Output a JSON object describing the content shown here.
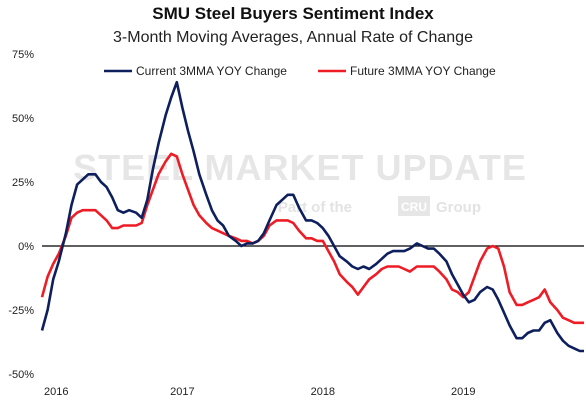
{
  "chart_data": {
    "type": "line",
    "title": "SMU Steel Buyers Sentiment Index",
    "subtitle": "3-Month Moving Averages, Annual Rate of Change",
    "ylim": [
      -50,
      75
    ],
    "yticks": [
      "-50%",
      "-25%",
      "0%",
      "25%",
      "50%",
      "75%"
    ],
    "ytick_values": [
      -50,
      -25,
      0,
      25,
      50,
      75
    ],
    "xticks": [
      "2016",
      "2017",
      "2018",
      "2019"
    ],
    "xtick_values": [
      2016,
      2017,
      2018,
      2019
    ],
    "xlim": [
      2016,
      2019.86
    ],
    "legend_position": "top",
    "watermark": {
      "line1": "STEEL MARKET UPDATE",
      "line2_pre": "Part of the",
      "line2_box": "CRU",
      "line2_post": "Group"
    },
    "series": [
      {
        "name": "Current 3MMA YOY Change",
        "color": "#0d1f5c",
        "x": [
          2016.0,
          2016.04,
          2016.08,
          2016.12,
          2016.17,
          2016.21,
          2016.25,
          2016.29,
          2016.33,
          2016.38,
          2016.42,
          2016.46,
          2016.5,
          2016.54,
          2016.58,
          2016.62,
          2016.67,
          2016.71,
          2016.75,
          2016.79,
          2016.83,
          2016.88,
          2016.92,
          2016.96,
          2017.0,
          2017.04,
          2017.08,
          2017.12,
          2017.17,
          2017.21,
          2017.25,
          2017.29,
          2017.33,
          2017.38,
          2017.42,
          2017.46,
          2017.5,
          2017.54,
          2017.58,
          2017.62,
          2017.67,
          2017.71,
          2017.75,
          2017.79,
          2017.83,
          2017.88,
          2017.92,
          2017.96,
          2018.0,
          2018.04,
          2018.08,
          2018.12,
          2018.17,
          2018.21,
          2018.25,
          2018.29,
          2018.33,
          2018.38,
          2018.42,
          2018.46,
          2018.5,
          2018.54,
          2018.58,
          2018.62,
          2018.67,
          2018.71,
          2018.75,
          2018.79,
          2018.83,
          2018.88,
          2018.92,
          2018.96,
          2019.0,
          2019.04,
          2019.08,
          2019.12,
          2019.17,
          2019.21,
          2019.25,
          2019.29,
          2019.33,
          2019.38,
          2019.42,
          2019.46,
          2019.5,
          2019.54,
          2019.58,
          2019.62,
          2019.67,
          2019.71,
          2019.75,
          2019.79,
          2019.83,
          2019.86
        ],
        "y": [
          -33,
          -25,
          -13,
          -6,
          5,
          16,
          24,
          26,
          28,
          28,
          25,
          23,
          19,
          14,
          13,
          14,
          13,
          11,
          18,
          30,
          40,
          51,
          58,
          64,
          54,
          45,
          37,
          28,
          20,
          14,
          10,
          8,
          4,
          2,
          0,
          1,
          1,
          2,
          5,
          10,
          16,
          18,
          20,
          20,
          15,
          10,
          10,
          9,
          7,
          4,
          0,
          -4,
          -6,
          -8,
          -9,
          -8,
          -9,
          -7,
          -5,
          -3,
          -2,
          -2,
          -2,
          -1,
          1,
          0,
          -1,
          -1,
          -3,
          -6,
          -11,
          -15,
          -19,
          -22,
          -21,
          -18,
          -16,
          -17,
          -21,
          -26,
          -31,
          -36,
          -36,
          -34,
          -33,
          -33,
          -30,
          -29,
          -34,
          -37,
          -39,
          -40,
          -41,
          -41
        ]
      },
      {
        "name": "Future 3MMA YOY Change",
        "color": "#ee1c25",
        "x": [
          2016.0,
          2016.04,
          2016.08,
          2016.12,
          2016.17,
          2016.21,
          2016.25,
          2016.29,
          2016.33,
          2016.38,
          2016.42,
          2016.46,
          2016.5,
          2016.54,
          2016.58,
          2016.62,
          2016.67,
          2016.71,
          2016.75,
          2016.79,
          2016.83,
          2016.88,
          2016.92,
          2016.96,
          2017.0,
          2017.04,
          2017.08,
          2017.12,
          2017.17,
          2017.21,
          2017.25,
          2017.29,
          2017.33,
          2017.38,
          2017.42,
          2017.46,
          2017.5,
          2017.54,
          2017.58,
          2017.62,
          2017.67,
          2017.71,
          2017.75,
          2017.79,
          2017.83,
          2017.88,
          2017.92,
          2017.96,
          2018.0,
          2018.04,
          2018.08,
          2018.12,
          2018.17,
          2018.21,
          2018.25,
          2018.29,
          2018.33,
          2018.38,
          2018.42,
          2018.46,
          2018.5,
          2018.54,
          2018.58,
          2018.62,
          2018.67,
          2018.71,
          2018.75,
          2018.79,
          2018.83,
          2018.88,
          2018.92,
          2018.96,
          2019.0,
          2019.04,
          2019.08,
          2019.12,
          2019.17,
          2019.21,
          2019.25,
          2019.29,
          2019.33,
          2019.38,
          2019.42,
          2019.46,
          2019.5,
          2019.54,
          2019.58,
          2019.62,
          2019.67,
          2019.71,
          2019.75,
          2019.79,
          2019.83,
          2019.86
        ],
        "y": [
          -20,
          -12,
          -7,
          -3,
          4,
          11,
          13,
          14,
          14,
          14,
          12,
          10,
          7,
          7,
          8,
          8,
          8,
          9,
          16,
          22,
          28,
          33,
          36,
          35,
          28,
          22,
          16,
          12,
          9,
          7,
          6,
          5,
          4,
          3,
          2,
          2,
          1,
          2,
          4,
          8,
          10,
          10,
          10,
          9,
          6,
          3,
          3,
          2,
          2,
          -2,
          -6,
          -11,
          -14,
          -16,
          -19,
          -16,
          -13,
          -11,
          -9,
          -8,
          -8,
          -8,
          -9,
          -10,
          -8,
          -8,
          -8,
          -8,
          -10,
          -13,
          -17,
          -18,
          -20,
          -18,
          -12,
          -6,
          -1,
          0,
          -1,
          -8,
          -18,
          -23,
          -23,
          -22,
          -21,
          -20,
          -17,
          -22,
          -25,
          -28,
          -29,
          -30,
          -30,
          -30
        ]
      }
    ]
  }
}
